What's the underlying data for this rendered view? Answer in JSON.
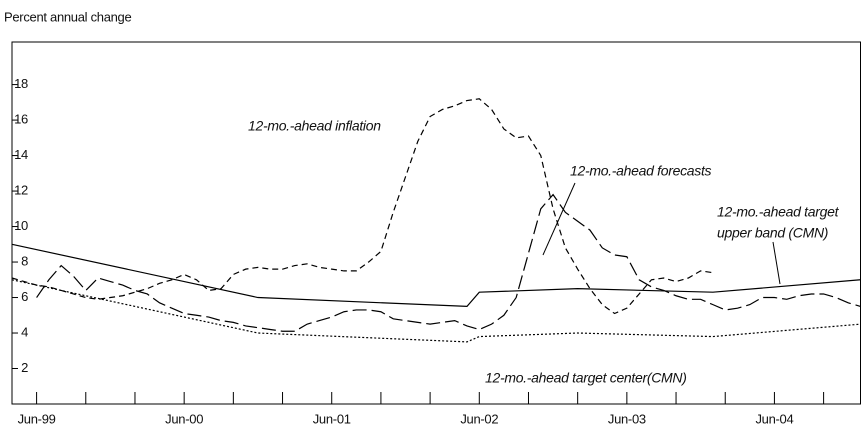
{
  "chart_data": {
    "type": "line",
    "title": "Percent annual change",
    "x": [
      "1999-04",
      "1999-05",
      "1999-06",
      "1999-07",
      "1999-08",
      "1999-09",
      "1999-10",
      "1999-11",
      "1999-12",
      "2000-01",
      "2000-02",
      "2000-03",
      "2000-04",
      "2000-05",
      "2000-06",
      "2000-07",
      "2000-08",
      "2000-09",
      "2000-10",
      "2000-11",
      "2000-12",
      "2001-01",
      "2001-02",
      "2001-03",
      "2001-04",
      "2001-05",
      "2001-06",
      "2001-07",
      "2001-08",
      "2001-09",
      "2001-10",
      "2001-11",
      "2001-12",
      "2002-01",
      "2002-02",
      "2002-03",
      "2002-04",
      "2002-05",
      "2002-06",
      "2002-07",
      "2002-08",
      "2002-09",
      "2002-10",
      "2002-11",
      "2002-12",
      "2003-01",
      "2003-02",
      "2003-03",
      "2003-04",
      "2003-05",
      "2003-06",
      "2003-07",
      "2003-08",
      "2003-09",
      "2003-10",
      "2003-11",
      "2003-12",
      "2004-01",
      "2004-02",
      "2004-03",
      "2004-04",
      "2004-05",
      "2004-06",
      "2004-07",
      "2004-08",
      "2004-09",
      "2004-10",
      "2004-11",
      "2004-12",
      "2005-01"
    ],
    "series": [
      {
        "name": "12-mo.-ahead inflation",
        "color": "#000000",
        "line_style": "short-dash",
        "values": [
          7.1,
          6.9,
          6.7,
          6.6,
          6.4,
          6.2,
          6.0,
          5.9,
          6.0,
          6.1,
          6.3,
          6.5,
          6.8,
          7.0,
          7.3,
          7.0,
          6.4,
          6.5,
          7.3,
          7.6,
          7.7,
          7.6,
          7.6,
          7.8,
          7.9,
          7.7,
          7.6,
          7.5,
          7.5,
          8.0,
          8.6,
          10.8,
          12.8,
          14.8,
          16.2,
          16.6,
          16.8,
          17.1,
          17.2,
          16.6,
          15.5,
          15.0,
          15.1,
          14.0,
          11.0,
          8.8,
          7.6,
          6.5,
          5.6,
          5.1,
          5.4,
          6.2,
          7.0,
          7.1,
          6.9,
          7.1,
          7.5,
          7.4,
          null,
          null,
          null,
          null,
          null,
          null,
          null,
          null,
          null,
          null,
          null,
          null
        ]
      },
      {
        "name": "12-mo.-ahead forecasts",
        "color": "#000000",
        "line_style": "long-dash",
        "values": [
          null,
          null,
          6.0,
          7.0,
          7.8,
          7.2,
          6.4,
          7.1,
          6.9,
          6.7,
          6.4,
          6.2,
          5.7,
          5.4,
          5.1,
          5.0,
          4.9,
          4.7,
          4.6,
          4.4,
          4.3,
          4.2,
          4.1,
          4.1,
          4.5,
          4.7,
          4.9,
          5.2,
          5.3,
          5.3,
          5.2,
          4.8,
          4.7,
          4.6,
          4.5,
          4.6,
          4.7,
          4.4,
          4.2,
          4.5,
          5.0,
          6.0,
          8.5,
          11.0,
          11.8,
          10.8,
          10.3,
          9.8,
          8.8,
          8.4,
          8.3,
          7.0,
          6.6,
          6.4,
          6.1,
          5.9,
          5.9,
          5.6,
          5.3,
          5.4,
          5.6,
          6.0,
          6.0,
          5.9,
          6.1,
          6.2,
          6.2,
          6.0,
          5.7,
          5.5
        ]
      },
      {
        "name": [
          "12-mo.-ahead target",
          "upper band (CMN)"
        ],
        "color": "#000000",
        "line_style": "solid",
        "x": [
          "1999-04",
          "2000-12",
          "2002-05",
          "2002-06",
          "2003-02",
          "2004-01",
          "2005-01"
        ],
        "values": [
          9.0,
          6.0,
          5.5,
          6.3,
          6.5,
          6.3,
          7.0
        ]
      },
      {
        "name": "12-mo.-ahead target center(CMN)",
        "color": "#000000",
        "line_style": "dotted",
        "x": [
          "1999-04",
          "2000-12",
          "2002-05",
          "2002-06",
          "2003-02",
          "2004-01",
          "2005-01"
        ],
        "values": [
          7.0,
          4.0,
          3.5,
          3.8,
          4.0,
          3.8,
          4.5
        ]
      }
    ],
    "xlim": [
      "1999-04",
      "2005-01"
    ],
    "xticks": [
      {
        "value": "1999-06",
        "label": "Jun-99"
      },
      {
        "value": "1999-10",
        "label": null
      },
      {
        "value": "2000-02",
        "label": null
      },
      {
        "value": "2000-06",
        "label": "Jun-00"
      },
      {
        "value": "2000-10",
        "label": null
      },
      {
        "value": "2001-02",
        "label": null
      },
      {
        "value": "2001-06",
        "label": "Jun-01"
      },
      {
        "value": "2001-10",
        "label": null
      },
      {
        "value": "2002-02",
        "label": null
      },
      {
        "value": "2002-06",
        "label": "Jun-02"
      },
      {
        "value": "2002-10",
        "label": null
      },
      {
        "value": "2003-02",
        "label": null
      },
      {
        "value": "2003-06",
        "label": "Jun-03"
      },
      {
        "value": "2003-10",
        "label": null
      },
      {
        "value": "2004-02",
        "label": null
      },
      {
        "value": "2004-06",
        "label": "Jun-04"
      },
      {
        "value": "2004-10",
        "label": null
      }
    ],
    "ylim": [
      0,
      20.4
    ],
    "yticks": [
      2,
      4,
      6,
      8,
      10,
      12,
      14,
      16,
      18
    ],
    "grid": false
  }
}
